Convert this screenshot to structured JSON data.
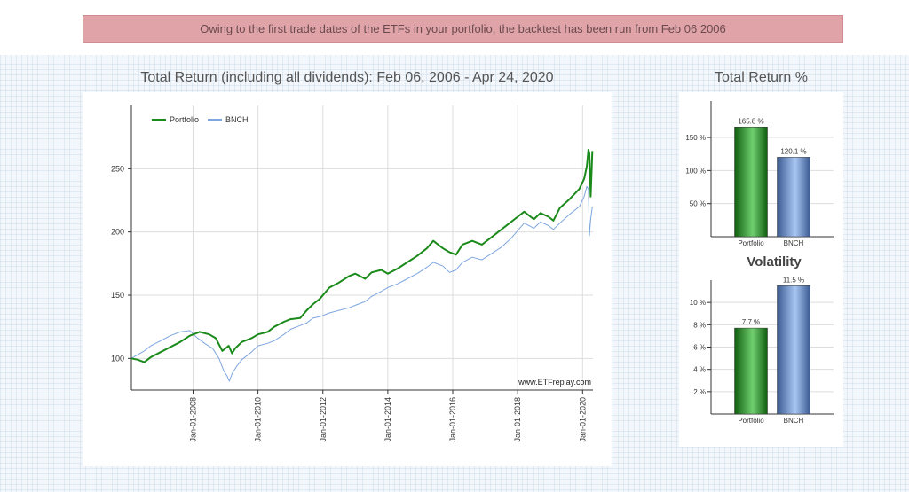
{
  "banner": "Owing to the first trade dates of the ETFs in your portfolio, the backtest has been run from Feb 06 2006",
  "main_title": "Total Return (including all dividends): Feb 06, 2006 - Apr 24, 2020",
  "return_title": "Total Return %",
  "volatility_title": "Volatility",
  "watermark": "www.ETFreplay.com",
  "colors": {
    "portfolio": "#1a8a1a",
    "bench": "#7ea6e0",
    "banner": "#dfa3a8"
  },
  "chart_data": [
    {
      "type": "line",
      "title": "Total Return (including all dividends): Feb 06, 2006 - Apr 24, 2020",
      "xlim": [
        2006.1,
        2020.32
      ],
      "ylim": [
        75,
        300
      ],
      "yticks": [
        100,
        150,
        200,
        250
      ],
      "xticks": [
        {
          "label": "Jan-01-2008",
          "x": 2008
        },
        {
          "label": "Jan-01-2010",
          "x": 2010
        },
        {
          "label": "Jan-01-2012",
          "x": 2012
        },
        {
          "label": "Jan-01-2014",
          "x": 2014
        },
        {
          "label": "Jan-01-2016",
          "x": 2016
        },
        {
          "label": "Jan-01-2018",
          "x": 2018
        },
        {
          "label": "Jan-01-2020",
          "x": 2020
        }
      ],
      "legend": "top-left",
      "series": [
        {
          "name": "Portfolio",
          "x": [
            2006.1,
            2006.3,
            2006.5,
            2006.7,
            2007.0,
            2007.3,
            2007.6,
            2007.9,
            2008.2,
            2008.5,
            2008.7,
            2008.9,
            2009.1,
            2009.2,
            2009.3,
            2009.5,
            2009.8,
            2010.0,
            2010.3,
            2010.5,
            2010.8,
            2011.0,
            2011.3,
            2011.5,
            2011.7,
            2011.9,
            2012.2,
            2012.5,
            2012.8,
            2013.0,
            2013.3,
            2013.5,
            2013.8,
            2014.0,
            2014.3,
            2014.6,
            2014.9,
            2015.2,
            2015.4,
            2015.7,
            2015.9,
            2016.1,
            2016.3,
            2016.6,
            2016.9,
            2017.2,
            2017.5,
            2017.8,
            2018.0,
            2018.2,
            2018.5,
            2018.7,
            2018.95,
            2019.1,
            2019.3,
            2019.6,
            2019.9,
            2020.05,
            2020.13,
            2020.18,
            2020.21,
            2020.25,
            2020.3
          ],
          "y": [
            100,
            99,
            97,
            101,
            105,
            109,
            113,
            118,
            121,
            119,
            116,
            106,
            110,
            104,
            108,
            113,
            116,
            119,
            121,
            125,
            129,
            131,
            132,
            138,
            143,
            147,
            156,
            160,
            165,
            167,
            163,
            168,
            170,
            167,
            171,
            176,
            181,
            187,
            193,
            187,
            184,
            182,
            190,
            193,
            190,
            196,
            202,
            208,
            212,
            216,
            210,
            215,
            212,
            209,
            219,
            226,
            234,
            242,
            252,
            265,
            262,
            228,
            264
          ]
        },
        {
          "name": "BNCH",
          "x": [
            2006.1,
            2006.3,
            2006.5,
            2006.7,
            2007.0,
            2007.3,
            2007.6,
            2007.9,
            2008.1,
            2008.35,
            2008.6,
            2008.8,
            2008.95,
            2009.05,
            2009.12,
            2009.2,
            2009.35,
            2009.5,
            2009.8,
            2010.0,
            2010.3,
            2010.5,
            2010.8,
            2011.0,
            2011.3,
            2011.5,
            2011.7,
            2011.9,
            2012.2,
            2012.5,
            2012.8,
            2013.0,
            2013.3,
            2013.5,
            2013.8,
            2014.0,
            2014.3,
            2014.6,
            2014.9,
            2015.2,
            2015.4,
            2015.7,
            2015.9,
            2016.1,
            2016.3,
            2016.6,
            2016.9,
            2017.2,
            2017.5,
            2017.8,
            2018.0,
            2018.2,
            2018.5,
            2018.7,
            2018.95,
            2019.1,
            2019.3,
            2019.6,
            2019.9,
            2020.05,
            2020.13,
            2020.18,
            2020.21,
            2020.25,
            2020.3
          ],
          "y": [
            100,
            103,
            106,
            110,
            114,
            118,
            121,
            122,
            117,
            112,
            108,
            100,
            90,
            86,
            82,
            88,
            94,
            99,
            105,
            110,
            112,
            114,
            119,
            123,
            126,
            128,
            132,
            133,
            136,
            138,
            140,
            142,
            145,
            149,
            153,
            156,
            159,
            163,
            167,
            172,
            176,
            173,
            168,
            170,
            176,
            180,
            178,
            183,
            188,
            195,
            201,
            207,
            203,
            208,
            205,
            202,
            207,
            214,
            220,
            228,
            236,
            234,
            197,
            210,
            220
          ]
        }
      ]
    },
    {
      "type": "bar",
      "title": "Total Return %",
      "categories": [
        "Portfolio",
        "BNCH"
      ],
      "values": [
        165.8,
        120.1
      ],
      "value_labels": [
        "165.8 %",
        "120.1 %"
      ],
      "ylim": [
        0,
        205
      ],
      "yticks": [
        50,
        100,
        150
      ],
      "ytick_labels": [
        "50 %",
        "100 %",
        "150 %"
      ]
    },
    {
      "type": "bar",
      "title": "Volatility",
      "categories": [
        "Portfolio",
        "BNCH"
      ],
      "values": [
        7.7,
        11.5
      ],
      "value_labels": [
        "7.7 %",
        "11.5 %"
      ],
      "ylim": [
        0,
        12
      ],
      "yticks": [
        2,
        4,
        6,
        8,
        10
      ],
      "ytick_labels": [
        "2 %",
        "4 %",
        "6 %",
        "8 %",
        "10 %"
      ]
    }
  ]
}
